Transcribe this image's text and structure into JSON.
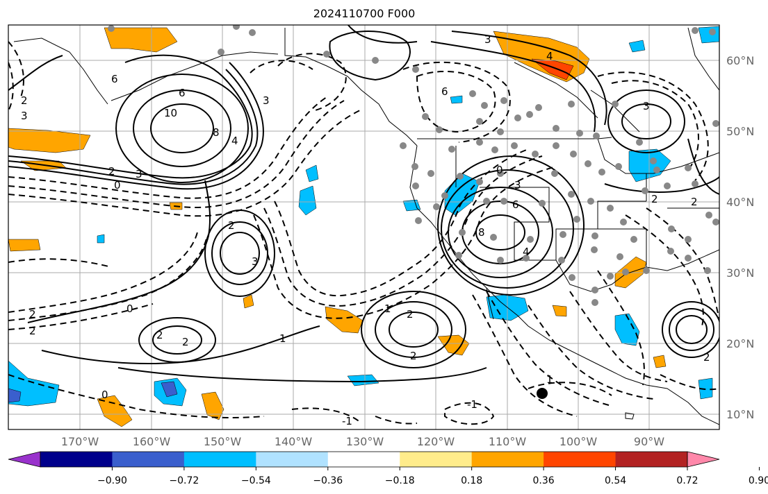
{
  "title": "2024110700 F000",
  "lon_labels": [
    "170°W",
    "160°W",
    "150°W",
    "140°W",
    "130°W",
    "120°W",
    "110°W",
    "100°W",
    "90°W"
  ],
  "lat_labels": [
    "10°N",
    "20°N",
    "30°N",
    "40°N",
    "50°N",
    "60°N"
  ],
  "colorbar": {
    "colors": [
      "#9932cc",
      "#00008b",
      "#3a5fcd",
      "#00bfff",
      "#b0e2ff",
      "#ffffff",
      "#ffec8b",
      "#ffa500",
      "#ff4500",
      "#b22222",
      "#ff88aa"
    ],
    "tick_labels": [
      "−0.90",
      "−0.72",
      "−0.54",
      "−0.36",
      "−0.18",
      "0.18",
      "0.36",
      "0.54",
      "0.72",
      "0.90"
    ]
  },
  "contour_labels": [
    "6",
    "6",
    "10",
    "8",
    "4",
    "3",
    "2",
    "0",
    "3",
    "2",
    "3",
    "2",
    "0",
    "2",
    "2",
    "1",
    "2",
    "1",
    "2",
    "2",
    "0",
    "-1",
    "1",
    "-1",
    "4",
    "3",
    "6",
    "8",
    "4",
    "6",
    "3",
    "2",
    "2",
    "3",
    "2",
    "0",
    "2",
    "3"
  ],
  "colors": {
    "orange": "#ffa500",
    "red": "#ff4500",
    "cyan": "#00bfff",
    "royal": "#3a5fcd"
  }
}
